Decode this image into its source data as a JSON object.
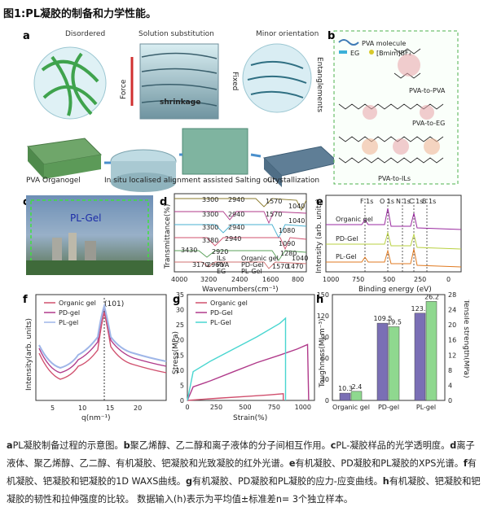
{
  "title": "图1:PL凝胶的制备和力学性能。",
  "panel_a": {
    "letter": "a",
    "headers": [
      "Disordered",
      "Solution substitution",
      "Minor orientation"
    ],
    "force": "Force",
    "fixed": "Fixed",
    "shrinkage": "shrinkage",
    "entanglements": "Entanglements",
    "bottom": [
      "PVA Organogel",
      "In situ localised alignment assisted Salting out",
      "Crystallization"
    ]
  },
  "panel_b": {
    "letter": "b",
    "legend": [
      "PVA molecule",
      "EG",
      "[Bmim]BF₄"
    ],
    "labels": [
      "PVA-to-PVA",
      "PVA-to-EG",
      "PVA-to-ILs"
    ]
  },
  "panel_c": {
    "letter": "c",
    "label": "PL-Gel"
  },
  "panel_d": {
    "letter": "d",
    "ylabel": "Transmittance(%)",
    "xlabel": "Wavenumbers(cm⁻¹)",
    "xticks": [
      "4000",
      "3200",
      "2400",
      "1600",
      "800"
    ],
    "peaks": [
      "3300",
      "2940",
      "1570",
      "1040",
      "3300",
      "2940",
      "1570",
      "1040",
      "3300",
      "2940",
      "1080",
      "3380",
      "2940",
      "1090",
      "3430",
      "2920",
      "1280",
      "3170",
      "2960",
      "1570",
      "1470",
      "1040"
    ],
    "legend": [
      "ILs",
      "Organic gel",
      "PVA",
      "PD-Gel",
      "EG",
      "PL-Gel"
    ]
  },
  "panel_e": {
    "letter": "e",
    "ylabel": "Intensity (arb. units)",
    "xlabel": "Binding energy (eV)",
    "xticks": [
      "1000",
      "750",
      "500",
      "250",
      "0"
    ],
    "peaks": [
      "F 1s",
      "O 1s",
      "N 1s",
      "C 1s",
      "B 1s"
    ],
    "series": [
      "Organic gel",
      "PD-Gel",
      "PL-Gel"
    ]
  },
  "panel_f": {
    "letter": "f",
    "ylabel": "Intensity(arb. units)",
    "xlabel": "q(nm⁻¹)",
    "xticks": [
      "5",
      "10",
      "15",
      "20"
    ],
    "annotation": "(101)",
    "legend": [
      "Organic gel",
      "PD-gel",
      "PL-gel"
    ]
  },
  "panel_g": {
    "letter": "g",
    "ylabel": "Stress(MPa)",
    "xlabel": "Strain(%)",
    "xticks": [
      "0",
      "250",
      "500",
      "750",
      "1000"
    ],
    "yticks": [
      "0",
      "5",
      "10",
      "15",
      "20",
      "25",
      "30",
      "35"
    ],
    "legend": [
      "Organic gel",
      "PD-Gel",
      "PL-Gel"
    ]
  },
  "panel_h": {
    "letter": "h",
    "ylabel_left": "Toughness(MJ m⁻³)",
    "ylabel_right": "Tensile strength(MPa)",
    "yticks_left": [
      "0",
      "30",
      "60",
      "90",
      "120",
      "150"
    ],
    "yticks_right": [
      "0",
      "4",
      "8",
      "12",
      "16",
      "20",
      "24",
      "28"
    ]
  },
  "chart_data": [
    {
      "type": "line",
      "panel": "g",
      "xlabel": "Strain(%)",
      "ylabel": "Stress(MPa)",
      "xlim": [
        0,
        1100
      ],
      "ylim": [
        0,
        35
      ],
      "series": [
        {
          "name": "Organic gel",
          "color": "#d0506e",
          "x": [
            0,
            100,
            300,
            500,
            700,
            830,
            830
          ],
          "y": [
            0,
            0.3,
            0.8,
            1.3,
            1.8,
            2.2,
            0
          ]
        },
        {
          "name": "PD-Gel",
          "color": "#b03a8a",
          "x": [
            0,
            50,
            200,
            400,
            600,
            800,
            950,
            1040,
            1050
          ],
          "y": [
            0,
            4.5,
            6.5,
            9.5,
            12.5,
            15,
            17,
            18.5,
            0
          ]
        },
        {
          "name": "PL-Gel",
          "color": "#49d6d0",
          "x": [
            0,
            50,
            200,
            400,
            600,
            800,
            850,
            850
          ],
          "y": [
            0,
            9.5,
            13,
            17,
            21,
            25.5,
            27.2,
            0
          ]
        }
      ]
    },
    {
      "type": "bar",
      "panel": "h",
      "categories": [
        "Organic gel",
        "PD-gel",
        "PL-gel"
      ],
      "ylim_left": [
        0,
        150
      ],
      "ylim_right": [
        0,
        28
      ],
      "series": [
        {
          "name": "Toughness",
          "axis": "left",
          "color": "#7a6fb5",
          "values": [
            10.3,
            109.5,
            123.7
          ]
        },
        {
          "name": "Tensile strength",
          "axis": "right",
          "color": "#8fd88f",
          "values": [
            2.4,
            19.5,
            26.2
          ]
        }
      ]
    }
  ],
  "caption": {
    "segments": [
      {
        "b": "a",
        "t": "PL凝胶制备过程的示意图。"
      },
      {
        "b": "b",
        "t": "聚乙烯醇、乙二醇和离子液体的分子间相互作用。"
      },
      {
        "b": "c",
        "t": "PL-凝胶样品的光学透明度。"
      },
      {
        "b": "d",
        "t": "离子液体、聚乙烯醇、乙二醇、有机凝胶、钯凝胶和光致凝胶的红外光谱。"
      },
      {
        "b": "e",
        "t": "有机凝胶、PD凝胶和PL凝胶的XPS光谱。"
      },
      {
        "b": "f",
        "t": "有机凝胶、钯凝胶和钯凝胶的1D WAXS曲线。"
      },
      {
        "b": "g",
        "t": "有机凝胶、PD凝胶和PL凝胶的应力-应变曲线。"
      },
      {
        "b": "h",
        "t": "有机凝胶、钯凝胶和钯凝胶的韧性和拉伸强度的比较。 数据输入(h)表示为平均值±标准差n= 3个独立样本。"
      }
    ]
  }
}
